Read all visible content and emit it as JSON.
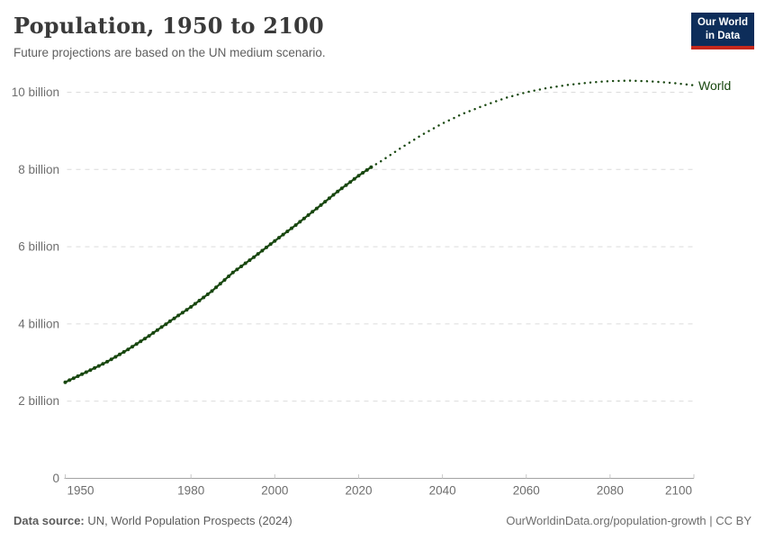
{
  "header": {
    "title": "Population, 1950 to 2100",
    "subtitle": "Future projections are based on the UN medium scenario.",
    "logo": {
      "line1": "Our World",
      "line2": "in Data"
    }
  },
  "footer": {
    "source_label": "Data source:",
    "source_value": " UN, World Population Prospects (2024)",
    "attribution": "OurWorldinData.org/population-growth | CC BY"
  },
  "colors": {
    "series": "#18470f",
    "grid": "#dcdcdc",
    "axis": "#a3a3a3",
    "tick": "#c8c8c8",
    "axis_label": "#6e6e6e",
    "title": "#3a3a3a",
    "subtitle": "#5f5f5f",
    "logo_bg": "#0d2d5a",
    "logo_red": "#c5281c"
  },
  "chart_data": {
    "type": "line",
    "title": "Population, 1950 to 2100",
    "subtitle": "Future projections are based on the UN medium scenario.",
    "series": [
      {
        "name": "World",
        "unit": "billion people",
        "x": [
          1950,
          1955,
          1960,
          1965,
          1970,
          1975,
          1980,
          1985,
          1990,
          1995,
          2000,
          2005,
          2010,
          2015,
          2020,
          2023,
          2025,
          2030,
          2035,
          2040,
          2045,
          2050,
          2055,
          2060,
          2065,
          2070,
          2075,
          2080,
          2085,
          2090,
          2095,
          2100
        ],
        "values": [
          2.49,
          2.75,
          3.02,
          3.34,
          3.69,
          4.07,
          4.44,
          4.85,
          5.33,
          5.73,
          6.15,
          6.56,
          6.99,
          7.43,
          7.84,
          8.06,
          8.19,
          8.55,
          8.89,
          9.19,
          9.45,
          9.66,
          9.85,
          10.0,
          10.11,
          10.19,
          10.25,
          10.29,
          10.3,
          10.28,
          10.24,
          10.18
        ],
        "historical_end_year": 2023,
        "style_historical": "solid-with-dots",
        "style_projection": "dotted"
      }
    ],
    "end_label": "World",
    "xlim": [
      1950,
      2100
    ],
    "ylim": [
      0,
      10.5
    ],
    "xticks": [
      1950,
      1980,
      2000,
      2020,
      2040,
      2060,
      2080,
      2100
    ],
    "yticks": [
      0,
      2,
      4,
      6,
      8,
      10
    ],
    "ytick_labels": [
      "0",
      "2 billion",
      "4 billion",
      "6 billion",
      "8 billion",
      "10 billion"
    ],
    "grid": true,
    "legend_position": "end-of-line"
  }
}
